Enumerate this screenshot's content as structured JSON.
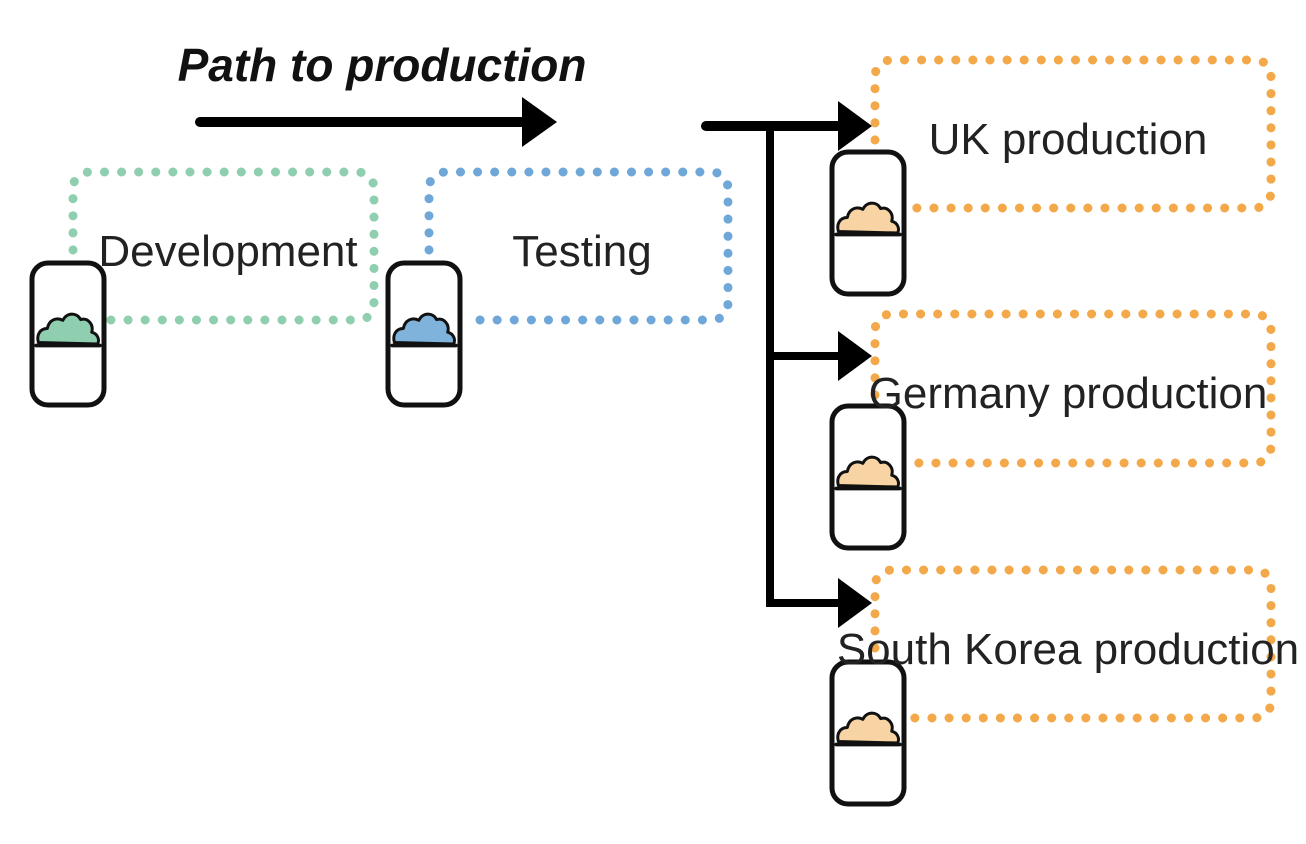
{
  "diagram": {
    "title": "Path to production",
    "environments": {
      "development": {
        "label": "Development",
        "color": "#8fcfb0",
        "cloud_fill": "#8fcfb0",
        "icon": "cloud-icon"
      },
      "testing": {
        "label": "Testing",
        "color": "#6fa8d8",
        "cloud_fill": "#7fb3dc",
        "icon": "cloud-icon"
      },
      "uk": {
        "label": "UK production",
        "color": "#f3a84a",
        "cloud_fill": "#f8d3a4",
        "icon": "cloud-icon"
      },
      "germany": {
        "label": "Germany production",
        "color": "#f3a84a",
        "cloud_fill": "#f8d3a4",
        "icon": "cloud-icon"
      },
      "south_korea": {
        "label": "South Korea production",
        "color": "#f3a84a",
        "cloud_fill": "#f8d3a4",
        "icon": "cloud-icon"
      }
    },
    "arrow_color": "#000000"
  }
}
